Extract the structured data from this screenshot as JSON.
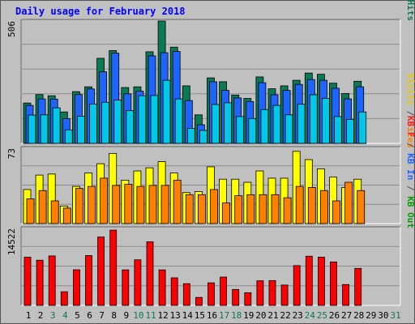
{
  "title": "Daily usage for February 2018",
  "chart_data": [
    {
      "type": "bar",
      "panel": "top",
      "ymax_label": "506",
      "right_label": [
        {
          "text": "Pages",
          "color": "#00c8e6"
        },
        {
          "text": " / ",
          "color": "#505050"
        },
        {
          "text": "Files",
          "color": "#1e64ff"
        },
        {
          "text": " / ",
          "color": "#505050"
        },
        {
          "text": "Hits",
          "color": "#0a7a55"
        }
      ],
      "ylim": [
        0,
        506
      ],
      "days": [
        "1",
        "2",
        "3",
        "4",
        "5",
        "6",
        "7",
        "8",
        "9",
        "10",
        "11",
        "12",
        "13",
        "14",
        "15",
        "16",
        "17",
        "18",
        "19",
        "20",
        "21",
        "22",
        "23",
        "24",
        "25",
        "26",
        "27",
        "28"
      ],
      "series": [
        {
          "name": "Hits",
          "color": "#0a7a55",
          "values": [
            167,
            202,
            197,
            130,
            214,
            234,
            352,
            384,
            231,
            234,
            379,
            506,
            398,
            238,
            118,
            271,
            255,
            200,
            186,
            275,
            226,
            238,
            261,
            291,
            286,
            249,
            206,
            257
          ]
        },
        {
          "name": "Files",
          "color": "#1e64ff",
          "values": [
            157,
            184,
            183,
            102,
            202,
            225,
            296,
            373,
            205,
            216,
            362,
            375,
            380,
            177,
            77,
            255,
            219,
            188,
            173,
            251,
            201,
            219,
            244,
            264,
            261,
            228,
            184,
            234
          ]
        },
        {
          "name": "Pages",
          "color": "#00c8e6",
          "values": [
            117,
            118,
            147,
            56,
            112,
            163,
            170,
            179,
            136,
            197,
            198,
            261,
            184,
            62,
            54,
            161,
            168,
            111,
            103,
            140,
            157,
            118,
            162,
            201,
            186,
            111,
            99,
            130
          ]
        }
      ]
    },
    {
      "type": "bar",
      "panel": "middle",
      "ymax_label": "73",
      "right_label": [
        {
          "text": "Visits",
          "color": "#e6c800"
        },
        {
          "text": " / ",
          "color": "#505050"
        },
        {
          "text": "Sites",
          "color": "#ff8000"
        }
      ],
      "ylim": [
        0,
        73
      ],
      "days": [
        "1",
        "2",
        "3",
        "4",
        "5",
        "6",
        "7",
        "8",
        "9",
        "10",
        "11",
        "12",
        "13",
        "14",
        "15",
        "16",
        "17",
        "18",
        "19",
        "20",
        "21",
        "22",
        "23",
        "24",
        "25",
        "26",
        "27",
        "28"
      ],
      "series": [
        {
          "name": "Visits",
          "color": "#ffff00",
          "values": [
            33,
            47,
            48,
            17,
            36,
            49,
            58,
            68,
            42,
            51,
            54,
            60,
            49,
            30,
            31,
            55,
            43,
            43,
            40,
            51,
            44,
            44,
            70,
            62,
            53,
            45,
            35,
            43
          ]
        },
        {
          "name": "Sites",
          "color": "#ff8000",
          "values": [
            24,
            32,
            22,
            15,
            34,
            36,
            44,
            37,
            38,
            36,
            37,
            37,
            42,
            28,
            28,
            33,
            20,
            27,
            28,
            28,
            28,
            25,
            36,
            35,
            32,
            22,
            40,
            32
          ]
        }
      ]
    },
    {
      "type": "bar",
      "panel": "bottom",
      "ymax_label": "14522",
      "right_label": [
        {
          "text": "KB F",
          "color": "#ff2020"
        },
        {
          "text": " / ",
          "color": "#505050"
        },
        {
          "text": "KB In",
          "color": "#1e64ff"
        },
        {
          "text": " / ",
          "color": "#505050"
        },
        {
          "text": "KB Out",
          "color": "#00a000"
        }
      ],
      "ylim": [
        0,
        14522
      ],
      "days": [
        "1",
        "2",
        "3",
        "4",
        "5",
        "6",
        "7",
        "8",
        "9",
        "10",
        "11",
        "12",
        "13",
        "14",
        "15",
        "16",
        "17",
        "18",
        "19",
        "20",
        "21",
        "22",
        "23",
        "24",
        "25",
        "26",
        "27",
        "28"
      ],
      "series": [
        {
          "name": "KB F",
          "color": "#ff0000",
          "values": [
            9093,
            8524,
            9331,
            2576,
            6719,
            9400,
            12900,
            14200,
            6700,
            8600,
            12000,
            6700,
            5200,
            4100,
            1500,
            4250,
            5340,
            3000,
            2390,
            4640,
            4690,
            3840,
            7500,
            9280,
            9111,
            8200,
            3930,
            6980
          ]
        }
      ]
    }
  ],
  "x_labels": [
    {
      "text": "1",
      "color": "#000000"
    },
    {
      "text": "2",
      "color": "#000000"
    },
    {
      "text": "3",
      "color": "#0a7a55"
    },
    {
      "text": "4",
      "color": "#0a7a55"
    },
    {
      "text": "5",
      "color": "#000000"
    },
    {
      "text": "6",
      "color": "#000000"
    },
    {
      "text": "7",
      "color": "#000000"
    },
    {
      "text": "8",
      "color": "#000000"
    },
    {
      "text": "9",
      "color": "#000000"
    },
    {
      "text": "10",
      "color": "#0a7a55"
    },
    {
      "text": "11",
      "color": "#0a7a55"
    },
    {
      "text": "12",
      "color": "#000000"
    },
    {
      "text": "13",
      "color": "#000000"
    },
    {
      "text": "14",
      "color": "#000000"
    },
    {
      "text": "15",
      "color": "#000000"
    },
    {
      "text": "16",
      "color": "#000000"
    },
    {
      "text": "17",
      "color": "#0a7a55"
    },
    {
      "text": "18",
      "color": "#0a7a55"
    },
    {
      "text": "19",
      "color": "#000000"
    },
    {
      "text": "20",
      "color": "#000000"
    },
    {
      "text": "21",
      "color": "#000000"
    },
    {
      "text": "22",
      "color": "#000000"
    },
    {
      "text": "23",
      "color": "#000000"
    },
    {
      "text": "24",
      "color": "#0a7a55"
    },
    {
      "text": "25",
      "color": "#0a7a55"
    },
    {
      "text": "26",
      "color": "#000000"
    },
    {
      "text": "27",
      "color": "#000000"
    },
    {
      "text": "28",
      "color": "#000000"
    },
    {
      "text": "29",
      "color": "#000000"
    },
    {
      "text": "30",
      "color": "#000000"
    },
    {
      "text": "31",
      "color": "#0a7a55"
    }
  ]
}
